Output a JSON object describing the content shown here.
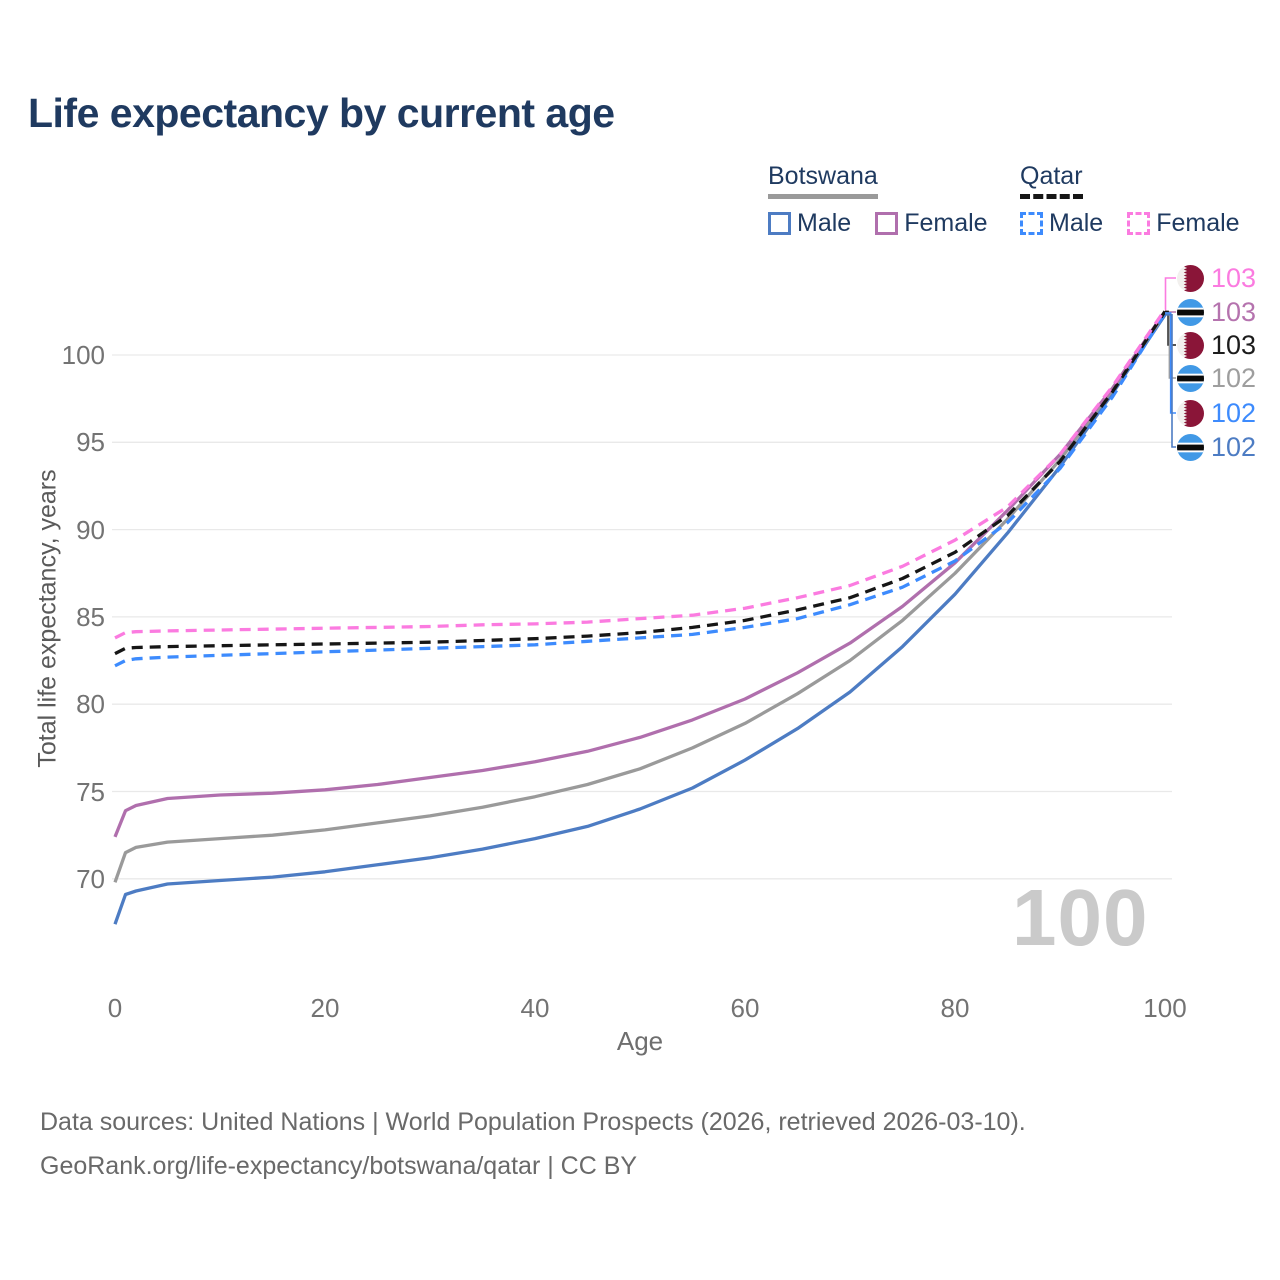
{
  "title": "Life expectancy by current age",
  "watermark": "100",
  "legend": {
    "groups": [
      {
        "label": "Botswana",
        "line_style": "solid",
        "underline_color": "#9a9a9a",
        "items": [
          {
            "label": "Male",
            "color": "#4d7cc3"
          },
          {
            "label": "Female",
            "color": "#b06fad"
          }
        ]
      },
      {
        "label": "Qatar",
        "line_style": "dashed",
        "underline_color": "#161616",
        "items": [
          {
            "label": "Male",
            "color": "#3d8bfd"
          },
          {
            "label": "Female",
            "color": "#fb7be0"
          }
        ]
      }
    ]
  },
  "chart_data": {
    "type": "line",
    "title": "Life expectancy by current age",
    "xlabel": "Age",
    "ylabel": "Total life expectancy, years",
    "xlim": [
      0,
      100
    ],
    "ylim": [
      66,
      104
    ],
    "xticks": [
      0,
      20,
      40,
      60,
      80,
      100
    ],
    "yticks": [
      70,
      75,
      80,
      85,
      90,
      95,
      100
    ],
    "grid": "horizontal",
    "legend_position": "top-right",
    "x": [
      0,
      1,
      2,
      5,
      10,
      15,
      20,
      25,
      30,
      35,
      40,
      45,
      50,
      55,
      60,
      65,
      70,
      75,
      80,
      85,
      90,
      95,
      100
    ],
    "series": [
      {
        "name": "Botswana Male",
        "country": "Botswana",
        "sex": "male",
        "style": "solid",
        "color": "#4d7cc3",
        "values": [
          67.4,
          69.1,
          69.3,
          69.7,
          69.9,
          70.1,
          70.4,
          70.8,
          71.2,
          71.7,
          72.3,
          73.0,
          74.0,
          75.2,
          76.8,
          78.6,
          80.7,
          83.3,
          86.3,
          89.8,
          93.6,
          97.8,
          102.3
        ]
      },
      {
        "name": "Botswana Both sexes",
        "country": "Botswana",
        "sex": "both",
        "style": "solid",
        "color": "#9a9a9a",
        "values": [
          69.8,
          71.5,
          71.8,
          72.1,
          72.3,
          72.5,
          72.8,
          73.2,
          73.6,
          74.1,
          74.7,
          75.4,
          76.3,
          77.5,
          78.9,
          80.6,
          82.5,
          84.8,
          87.5,
          90.6,
          94.0,
          98.0,
          102.4
        ]
      },
      {
        "name": "Botswana Female",
        "country": "Botswana",
        "sex": "female",
        "style": "solid",
        "color": "#b06fad",
        "values": [
          72.4,
          73.9,
          74.2,
          74.6,
          74.8,
          74.9,
          75.1,
          75.4,
          75.8,
          76.2,
          76.7,
          77.3,
          78.1,
          79.1,
          80.3,
          81.8,
          83.5,
          85.6,
          88.1,
          91.1,
          94.3,
          98.1,
          102.5
        ]
      },
      {
        "name": "Qatar Male",
        "country": "Qatar",
        "sex": "male",
        "style": "dashed",
        "color": "#3d8bfd",
        "values": [
          82.2,
          82.5,
          82.6,
          82.7,
          82.8,
          82.9,
          83.0,
          83.1,
          83.2,
          83.3,
          83.4,
          83.6,
          83.8,
          84.0,
          84.4,
          84.9,
          85.7,
          86.7,
          88.2,
          90.4,
          93.5,
          97.6,
          102.4
        ]
      },
      {
        "name": "Qatar Both sexes",
        "country": "Qatar",
        "sex": "both",
        "style": "dashed",
        "color": "#161616",
        "values": [
          82.9,
          83.2,
          83.25,
          83.3,
          83.35,
          83.4,
          83.45,
          83.5,
          83.55,
          83.65,
          83.75,
          83.9,
          84.1,
          84.4,
          84.8,
          85.4,
          86.1,
          87.2,
          88.7,
          90.8,
          93.9,
          97.9,
          102.5
        ]
      },
      {
        "name": "Qatar Female",
        "country": "Qatar",
        "sex": "female",
        "style": "dashed",
        "color": "#fb7be0",
        "values": [
          83.8,
          84.1,
          84.15,
          84.2,
          84.25,
          84.3,
          84.35,
          84.4,
          84.45,
          84.55,
          84.6,
          84.7,
          84.9,
          85.1,
          85.5,
          86.1,
          86.8,
          87.9,
          89.4,
          91.3,
          94.3,
          98.2,
          102.6
        ]
      }
    ],
    "end_labels": [
      {
        "value": "103",
        "flag": "qatar",
        "series_index": 5,
        "color": "#fb7be0"
      },
      {
        "value": "103",
        "flag": "botswana",
        "series_index": 2,
        "color": "#b573ae"
      },
      {
        "value": "103",
        "flag": "qatar",
        "series_index": 4,
        "color": "#1c1c1c"
      },
      {
        "value": "102",
        "flag": "botswana",
        "series_index": 1,
        "color": "#9e9e9e"
      },
      {
        "value": "102",
        "flag": "qatar",
        "series_index": 3,
        "color": "#3d8bfd"
      },
      {
        "value": "102",
        "flag": "botswana",
        "series_index": 0,
        "color": "#4d7cc3"
      }
    ]
  },
  "footer": {
    "line1": "Data sources: United Nations | World Population Prospects (2026, retrieved 2026-03-10).",
    "line2": "GeoRank.org/life-expectancy/botswana/qatar | CC BY"
  }
}
